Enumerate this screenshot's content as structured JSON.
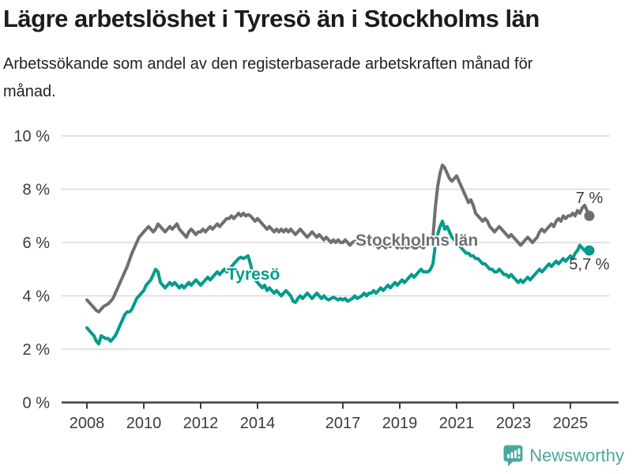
{
  "header": {
    "title": "Lägre arbetslöshet i Tyresö än i Stockholms län",
    "subtitle": "Arbetssökande som andel av den registerbaserade arbetskraften månad för månad."
  },
  "chart_data": {
    "type": "line",
    "title": "Lägre arbetslöshet i Tyresö än i Stockholms län",
    "subtitle": "Arbetssökande som andel av den registerbaserade arbetskraften månad för månad.",
    "frequency": "monthly",
    "x_start": "2008-01",
    "x_end": "2025-09",
    "x_tick_years": [
      2008,
      2010,
      2012,
      2014,
      2017,
      2019,
      2021,
      2023,
      2025
    ],
    "y_ticks": [
      0,
      2,
      4,
      6,
      8,
      10
    ],
    "y_tick_suffix": " %",
    "ylim": [
      0,
      10
    ],
    "grid": "horizontal",
    "legend_position": "inline-labels",
    "axis_color": "#3f3f3f",
    "grid_color": "#d8d8d8",
    "tick_label_color": "#3c3c3c",
    "annotation_color": "#3c3c3c",
    "series": [
      {
        "name": "Stockholms län",
        "color": "#6f6f73",
        "end_label": "7 %",
        "end_value": 7.0,
        "values": [
          3.85,
          3.75,
          3.65,
          3.55,
          3.45,
          3.4,
          3.5,
          3.6,
          3.65,
          3.7,
          3.8,
          3.9,
          4.1,
          4.3,
          4.5,
          4.7,
          4.9,
          5.1,
          5.35,
          5.6,
          5.8,
          6.0,
          6.2,
          6.3,
          6.4,
          6.5,
          6.6,
          6.5,
          6.4,
          6.5,
          6.7,
          6.6,
          6.5,
          6.4,
          6.5,
          6.6,
          6.5,
          6.6,
          6.7,
          6.5,
          6.4,
          6.3,
          6.2,
          6.4,
          6.5,
          6.4,
          6.3,
          6.4,
          6.4,
          6.5,
          6.4,
          6.5,
          6.6,
          6.5,
          6.6,
          6.7,
          6.6,
          6.7,
          6.8,
          6.9,
          6.9,
          7.0,
          6.9,
          7.0,
          7.1,
          7.0,
          7.1,
          7.0,
          7.05,
          7.0,
          6.9,
          6.8,
          6.9,
          6.8,
          6.7,
          6.6,
          6.5,
          6.6,
          6.5,
          6.4,
          6.5,
          6.4,
          6.5,
          6.4,
          6.5,
          6.4,
          6.5,
          6.4,
          6.3,
          6.4,
          6.5,
          6.4,
          6.3,
          6.2,
          6.3,
          6.4,
          6.3,
          6.2,
          6.3,
          6.2,
          6.1,
          6.2,
          6.1,
          6.0,
          6.1,
          6.0,
          6.1,
          6.0,
          6.0,
          6.1,
          6.0,
          5.9,
          6.0,
          6.05,
          6.0,
          5.9,
          6.0,
          5.9,
          6.0,
          6.05,
          6.0,
          5.9,
          5.9,
          5.8,
          5.9,
          5.9,
          5.8,
          5.9,
          5.85,
          5.9,
          5.9,
          5.8,
          5.9,
          5.8,
          5.9,
          5.8,
          5.85,
          5.9,
          5.8,
          5.8,
          5.9,
          5.85,
          5.8,
          5.9,
          5.9,
          5.9,
          6.2,
          7.3,
          8.1,
          8.6,
          8.9,
          8.8,
          8.6,
          8.4,
          8.3,
          8.4,
          8.5,
          8.3,
          8.1,
          7.9,
          7.7,
          7.5,
          7.6,
          7.4,
          7.1,
          7.0,
          6.9,
          6.8,
          6.9,
          6.8,
          6.6,
          6.5,
          6.4,
          6.5,
          6.6,
          6.5,
          6.4,
          6.3,
          6.2,
          6.3,
          6.2,
          6.1,
          6.0,
          5.9,
          6.0,
          6.1,
          6.2,
          6.1,
          6.0,
          6.1,
          6.2,
          6.4,
          6.5,
          6.4,
          6.5,
          6.6,
          6.7,
          6.6,
          6.8,
          6.9,
          6.8,
          7.0,
          6.9,
          7.0,
          7.0,
          7.1,
          7.0,
          7.2,
          7.1,
          7.3,
          7.4,
          7.2,
          7.0
        ]
      },
      {
        "name": "Tyresö",
        "color": "#009b8c",
        "end_label": "5,7 %",
        "end_value": 5.7,
        "values": [
          2.8,
          2.7,
          2.6,
          2.5,
          2.3,
          2.2,
          2.5,
          2.45,
          2.4,
          2.4,
          2.3,
          2.4,
          2.5,
          2.7,
          2.9,
          3.1,
          3.3,
          3.4,
          3.4,
          3.5,
          3.7,
          3.9,
          4.0,
          4.1,
          4.2,
          4.4,
          4.5,
          4.6,
          4.8,
          5.0,
          4.9,
          4.5,
          4.4,
          4.3,
          4.4,
          4.5,
          4.4,
          4.5,
          4.4,
          4.3,
          4.4,
          4.3,
          4.4,
          4.5,
          4.4,
          4.5,
          4.6,
          4.5,
          4.4,
          4.5,
          4.6,
          4.7,
          4.6,
          4.7,
          4.8,
          4.9,
          4.8,
          4.9,
          5.0,
          4.9,
          5.0,
          5.1,
          5.2,
          5.3,
          5.4,
          5.45,
          5.4,
          5.45,
          5.5,
          5.2,
          4.8,
          4.6,
          4.5,
          4.4,
          4.3,
          4.4,
          4.2,
          4.3,
          4.2,
          4.1,
          4.2,
          4.1,
          4.0,
          4.1,
          4.2,
          4.1,
          4.0,
          3.8,
          3.75,
          3.9,
          4.0,
          3.9,
          4.0,
          4.1,
          4.0,
          3.9,
          4.0,
          4.1,
          4.0,
          3.9,
          4.0,
          3.9,
          3.85,
          3.9,
          3.95,
          3.9,
          3.85,
          3.9,
          3.85,
          3.9,
          3.8,
          3.85,
          3.9,
          4.0,
          3.9,
          3.95,
          4.0,
          4.1,
          4.0,
          4.1,
          4.1,
          4.2,
          4.1,
          4.2,
          4.3,
          4.2,
          4.3,
          4.4,
          4.3,
          4.4,
          4.5,
          4.4,
          4.5,
          4.6,
          4.5,
          4.6,
          4.7,
          4.8,
          4.7,
          4.8,
          4.9,
          5.0,
          4.9,
          4.9,
          4.9,
          5.0,
          5.2,
          5.9,
          6.3,
          6.6,
          6.8,
          6.5,
          6.6,
          6.4,
          6.2,
          6.1,
          6.0,
          5.9,
          5.8,
          5.7,
          5.6,
          5.6,
          5.5,
          5.5,
          5.4,
          5.4,
          5.3,
          5.2,
          5.2,
          5.1,
          5.0,
          5.0,
          4.9,
          4.9,
          5.0,
          4.9,
          4.8,
          4.8,
          4.7,
          4.8,
          4.7,
          4.6,
          4.5,
          4.6,
          4.5,
          4.6,
          4.7,
          4.6,
          4.7,
          4.8,
          4.9,
          5.0,
          4.9,
          5.0,
          5.1,
          5.2,
          5.1,
          5.2,
          5.3,
          5.2,
          5.3,
          5.4,
          5.3,
          5.4,
          5.5,
          5.4,
          5.6,
          5.7,
          5.9,
          5.8,
          5.7,
          5.8,
          5.7
        ]
      }
    ]
  },
  "footer": {
    "brand": "Newsworthy",
    "logo_color": "#4aa79f"
  }
}
